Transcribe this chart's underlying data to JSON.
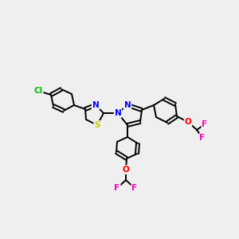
{
  "bg_color": "#efefef",
  "bond_color": "#000000",
  "atom_colors": {
    "N": "#0000ff",
    "S": "#cccc00",
    "O": "#ff0000",
    "F": "#ff00bb",
    "Cl": "#00bb00",
    "C": "#000000"
  },
  "figsize": [
    3.0,
    3.0
  ],
  "dpi": 100
}
